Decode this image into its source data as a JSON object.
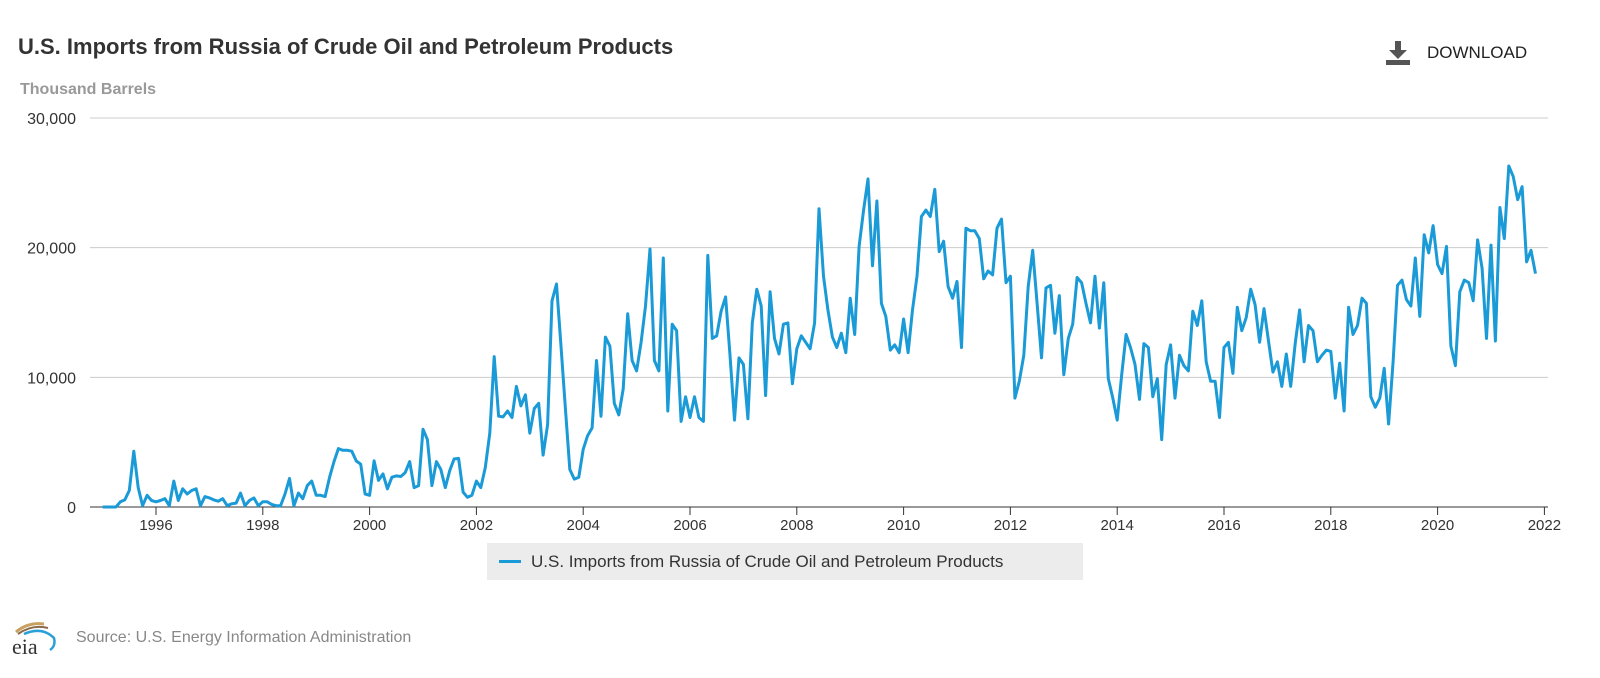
{
  "header": {
    "title": "U.S. Imports from Russia of Crude Oil and Petroleum Products",
    "units": "Thousand Barrels",
    "download_label": "DOWNLOAD",
    "download_icon": "download-icon"
  },
  "footer": {
    "logo_text": "eia",
    "source": "Source: U.S. Energy Information Administration"
  },
  "colors": {
    "series": "#1a9ad6",
    "grid": "#cccccc",
    "text": "#333333"
  },
  "chart_data": {
    "type": "line",
    "title": "U.S. Imports from Russia of Crude Oil and Petroleum Products",
    "ylabel": "Thousand Barrels",
    "xlabel": "",
    "frequency": "monthly",
    "x_start": "1995-01",
    "x_end": "2021-11",
    "ylim": [
      0,
      30000
    ],
    "yticks": [
      "0",
      "10,000",
      "20,000",
      "30,000"
    ],
    "xticks": [
      "1996",
      "1998",
      "2000",
      "2002",
      "2004",
      "2006",
      "2008",
      "2010",
      "2012",
      "2014",
      "2016",
      "2018",
      "2020",
      "2022"
    ],
    "grid": "horizontal",
    "legend_position": "bottom",
    "series": [
      {
        "name": "U.S. Imports from Russia of Crude Oil and Petroleum Products",
        "values_by_year": {
          "1995": [
            0,
            0,
            0,
            0,
            400,
            550,
            1270,
            4300,
            1500,
            100,
            900,
            500
          ],
          "1996": [
            400,
            500,
            640,
            100,
            2000,
            500,
            1400,
            1000,
            1270,
            1400,
            100,
            800
          ],
          "1997": [
            700,
            550,
            450,
            640,
            100,
            250,
            300,
            1070,
            100,
            500,
            700,
            100
          ],
          "1998": [
            400,
            400,
            200,
            100,
            100,
            1000,
            2200,
            100,
            1070,
            640,
            1650,
            2000
          ],
          "1999": [
            900,
            900,
            800,
            2300,
            3500,
            4500,
            4370,
            4370,
            4300,
            3550,
            3300,
            1000
          ],
          "2000": [
            900,
            3560,
            2050,
            2550,
            1400,
            2300,
            2400,
            2350,
            2650,
            3500,
            1500,
            1650
          ],
          "2001": [
            6000,
            5200,
            1650,
            3500,
            2900,
            1500,
            2800,
            3700,
            3750,
            1150,
            750,
            900
          ],
          "2002": [
            2000,
            1500,
            3050,
            5700,
            11600,
            7000,
            6950,
            7400,
            6900,
            9300,
            7800,
            8650
          ],
          "2003": [
            5700,
            7600,
            8000,
            4000,
            6350,
            15900,
            17200,
            12500,
            7600,
            2900,
            2150,
            2300
          ],
          "2004": [
            4450,
            5500,
            6100,
            11300,
            7000,
            13100,
            12400,
            8000,
            7100,
            9100,
            14900,
            11300
          ],
          "2005": [
            10500,
            12700,
            15500,
            19900,
            11300,
            10500,
            19200,
            7400,
            14100,
            13600,
            6600,
            8500
          ],
          "2006": [
            6900,
            8500,
            6900,
            6600,
            19400,
            13000,
            13200,
            15100,
            16200,
            11700,
            6700,
            11500
          ],
          "2007": [
            11000,
            6800,
            14200,
            16800,
            15500,
            8600,
            16600,
            13000,
            11800,
            14100,
            14200,
            9500
          ],
          "2008": [
            12200,
            13200,
            12700,
            12200,
            14200,
            23000,
            17800,
            15200,
            13100,
            12300,
            13400,
            11900
          ],
          "2009": [
            16100,
            13300,
            20100,
            22900,
            25300,
            18600,
            23600,
            15700,
            14700,
            12100,
            12500,
            11900
          ],
          "2010": [
            14500,
            11900,
            15200,
            17800,
            22400,
            22900,
            22400,
            24500,
            19700,
            20500,
            17000,
            16100
          ],
          "2011": [
            17400,
            12300,
            21500,
            21300,
            21300,
            20700,
            17600,
            18200,
            17900,
            21500,
            22200,
            17300
          ],
          "2012": [
            17800,
            8400,
            9700,
            11700,
            17000,
            19800,
            15700,
            11500,
            16900,
            17100,
            13400,
            16300
          ],
          "2013": [
            10200,
            13000,
            14100,
            17700,
            17300,
            15700,
            14200,
            17800,
            13800,
            17300,
            9900,
            8400
          ],
          "2014": [
            6700,
            10200,
            13300,
            12300,
            11000,
            8300,
            12600,
            12300,
            8500,
            9900,
            5200,
            11000
          ],
          "2015": [
            12500,
            8400,
            11700,
            10900,
            10500,
            15100,
            14000,
            15900,
            11200,
            9700,
            9700,
            6900
          ],
          "2016": [
            12300,
            12700,
            10300,
            15400,
            13600,
            14600,
            16800,
            15600,
            12700,
            15300,
            12800,
            10400
          ],
          "2017": [
            11200,
            9300,
            11800,
            9300,
            12600,
            15200,
            11200,
            14000,
            13600,
            11200,
            11700,
            12100
          ],
          "2018": [
            12000,
            8400,
            11100,
            7400,
            15400,
            13300,
            14000,
            16100,
            15700,
            8500,
            7700,
            8400
          ],
          "2019": [
            10700,
            6400,
            11200,
            17100,
            17500,
            16000,
            15500,
            19200,
            14700,
            21000,
            19600,
            21700
          ],
          "2020": [
            18700,
            18000,
            20100,
            12400,
            10900,
            16600,
            17500,
            17300,
            15900,
            20600,
            18400,
            13000
          ],
          "2021": [
            20200,
            12800,
            23100,
            20700,
            26300,
            25500,
            23700,
            24700,
            18900,
            19800,
            18000
          ]
        }
      }
    ]
  }
}
